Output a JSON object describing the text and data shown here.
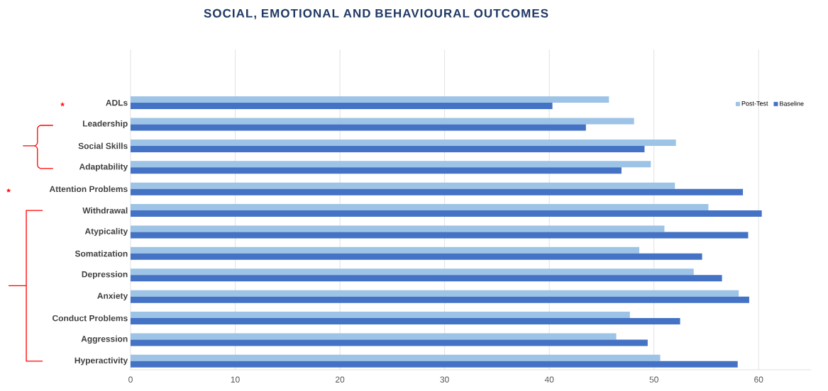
{
  "chart_data": {
    "type": "bar",
    "orientation": "horizontal",
    "title": "SOCIAL, EMOTIONAL AND BEHAVIOURAL OUTCOMES",
    "categories": [
      "ADLs",
      "Leadership",
      "Social Skills",
      "Adaptability",
      "Attention Problems",
      "Withdrawal",
      "Atypicality",
      "Somatization",
      "Depression",
      "Anxiety",
      "Conduct Problems",
      "Aggression",
      "Hyperactivity"
    ],
    "series": [
      {
        "name": "Post-Test",
        "color": "#9dc3e6",
        "values": [
          45.7,
          48.1,
          52.1,
          49.7,
          52.0,
          55.2,
          51.0,
          48.6,
          53.8,
          58.1,
          47.7,
          46.4,
          50.6
        ]
      },
      {
        "name": "Baseline",
        "color": "#4472c4",
        "values": [
          40.3,
          43.5,
          49.1,
          46.9,
          58.5,
          60.3,
          59.0,
          54.6,
          56.5,
          59.1,
          52.5,
          49.4,
          58.0
        ]
      }
    ],
    "xlim": [
      0,
      65
    ],
    "xticks": [
      0,
      10,
      20,
      30,
      40,
      50,
      60
    ],
    "grid": "x",
    "legend": "top right",
    "annotations": [
      "*",
      "*"
    ]
  }
}
